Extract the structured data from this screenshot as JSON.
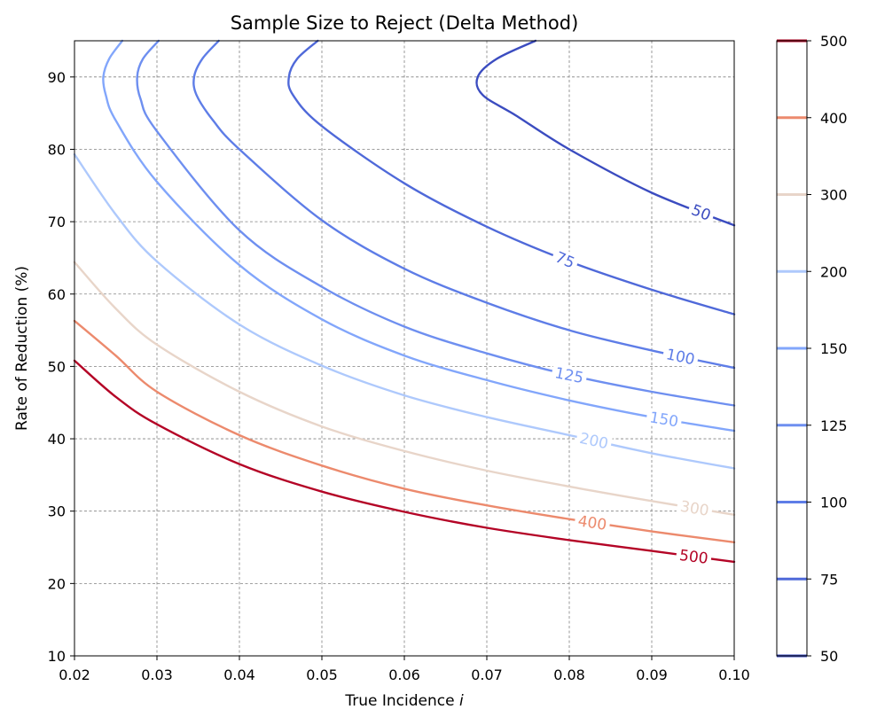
{
  "chart_data": {
    "type": "contour",
    "title": "Sample Size to Reject (Delta Method)",
    "xlabel": "True Incidence ",
    "xlabel_var": "i",
    "ylabel": "Rate of Reduction (%)",
    "xlim": [
      0.02,
      0.1
    ],
    "ylim": [
      10,
      95
    ],
    "x_ticks": [
      "0.02",
      "0.03",
      "0.04",
      "0.05",
      "0.06",
      "0.07",
      "0.08",
      "0.09",
      "0.10"
    ],
    "x_tick_values": [
      0.02,
      0.03,
      0.04,
      0.05,
      0.06,
      0.07,
      0.08,
      0.09,
      0.1
    ],
    "y_ticks": [
      "10",
      "20",
      "30",
      "40",
      "50",
      "60",
      "70",
      "80",
      "90"
    ],
    "y_tick_values": [
      10,
      20,
      30,
      40,
      50,
      60,
      70,
      80,
      90
    ],
    "grid": true,
    "levels": [
      {
        "level": 50,
        "label": "50",
        "color": "#3b4cc0",
        "points": [
          [
            0.0759,
            95
          ],
          [
            0.0712,
            92.5
          ],
          [
            0.0689,
            90
          ],
          [
            0.0695,
            87.5
          ],
          [
            0.0735,
            84.7
          ],
          [
            0.08,
            80
          ],
          [
            0.09,
            74
          ],
          [
            0.1,
            69.5
          ]
        ]
      },
      {
        "level": 75,
        "label": "75",
        "color": "#4f69d9",
        "points": [
          [
            0.0495,
            95
          ],
          [
            0.047,
            92.5
          ],
          [
            0.046,
            90
          ],
          [
            0.0465,
            87.5
          ],
          [
            0.05,
            83.2
          ],
          [
            0.06,
            75.3
          ],
          [
            0.07,
            69.3
          ],
          [
            0.08,
            64.5
          ],
          [
            0.09,
            60.6
          ],
          [
            0.1,
            57.2
          ]
        ]
      },
      {
        "level": 100,
        "label": "100",
        "color": "#5e7de7",
        "points": [
          [
            0.0375,
            95
          ],
          [
            0.0355,
            92.5
          ],
          [
            0.0345,
            90
          ],
          [
            0.0348,
            87.5
          ],
          [
            0.0368,
            84
          ],
          [
            0.04,
            80
          ],
          [
            0.05,
            70.2
          ],
          [
            0.06,
            63.5
          ],
          [
            0.07,
            58.8
          ],
          [
            0.08,
            55
          ],
          [
            0.09,
            52.2
          ],
          [
            0.1,
            49.8
          ]
        ]
      },
      {
        "level": 125,
        "label": "125",
        "color": "#6e8ff0",
        "points": [
          [
            0.0302,
            95
          ],
          [
            0.0283,
            92.5
          ],
          [
            0.0276,
            90
          ],
          [
            0.028,
            87
          ],
          [
            0.03,
            82.5
          ],
          [
            0.04,
            68.8
          ],
          [
            0.05,
            61
          ],
          [
            0.06,
            55.5
          ],
          [
            0.07,
            51.8
          ],
          [
            0.08,
            48.8
          ],
          [
            0.09,
            46.5
          ],
          [
            0.1,
            44.6
          ]
        ]
      },
      {
        "level": 150,
        "label": "150",
        "color": "#82a6fb",
        "points": [
          [
            0.0258,
            95
          ],
          [
            0.0242,
            92.5
          ],
          [
            0.0235,
            90
          ],
          [
            0.0238,
            87.5
          ],
          [
            0.025,
            84
          ],
          [
            0.03,
            75.5
          ],
          [
            0.04,
            64
          ],
          [
            0.05,
            56.5
          ],
          [
            0.06,
            51.5
          ],
          [
            0.07,
            48.1
          ],
          [
            0.08,
            45.3
          ],
          [
            0.09,
            43
          ],
          [
            0.1,
            41.1
          ]
        ]
      },
      {
        "level": 200,
        "label": "200",
        "color": "#aec9fc",
        "points": [
          [
            0.02,
            79.3
          ],
          [
            0.025,
            71
          ],
          [
            0.03,
            64.5
          ],
          [
            0.04,
            55.8
          ],
          [
            0.05,
            50.1
          ],
          [
            0.06,
            46
          ],
          [
            0.07,
            43
          ],
          [
            0.08,
            40.5
          ],
          [
            0.09,
            38
          ],
          [
            0.1,
            35.9
          ]
        ]
      },
      {
        "level": 300,
        "label": "300",
        "color": "#e8d5c9",
        "points": [
          [
            0.02,
            64.4
          ],
          [
            0.025,
            58
          ],
          [
            0.03,
            53
          ],
          [
            0.04,
            46.5
          ],
          [
            0.05,
            41.7
          ],
          [
            0.06,
            38.3
          ],
          [
            0.07,
            35.6
          ],
          [
            0.08,
            33.4
          ],
          [
            0.09,
            31.4
          ],
          [
            0.1,
            29.5
          ]
        ]
      },
      {
        "level": 400,
        "label": "400",
        "color": "#ec8a6d",
        "points": [
          [
            0.02,
            56.3
          ],
          [
            0.025,
            51.5
          ],
          [
            0.03,
            46.5
          ],
          [
            0.04,
            40.5
          ],
          [
            0.05,
            36.3
          ],
          [
            0.06,
            33.1
          ],
          [
            0.07,
            30.8
          ],
          [
            0.08,
            28.9
          ],
          [
            0.09,
            27.2
          ],
          [
            0.1,
            25.7
          ]
        ]
      },
      {
        "level": 500,
        "label": "500",
        "color": "#b40426",
        "points": [
          [
            0.02,
            50.8
          ],
          [
            0.025,
            45.8
          ],
          [
            0.03,
            42
          ],
          [
            0.04,
            36.5
          ],
          [
            0.05,
            32.7
          ],
          [
            0.06,
            29.9
          ],
          [
            0.07,
            27.7
          ],
          [
            0.08,
            26
          ],
          [
            0.09,
            24.5
          ],
          [
            0.1,
            23
          ]
        ]
      }
    ],
    "colorbar": {
      "ticks": [
        "50",
        "75",
        "100",
        "125",
        "150",
        "200",
        "300",
        "400",
        "500"
      ]
    }
  }
}
